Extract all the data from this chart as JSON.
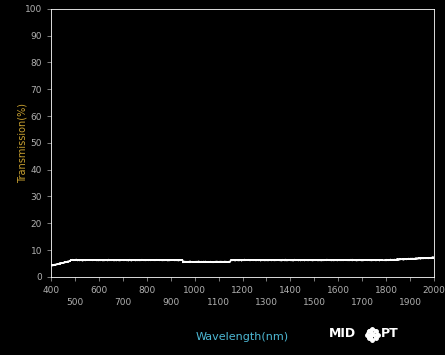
{
  "background_color": "#000000",
  "plot_bg_color": "#000000",
  "line_color": "#ffffff",
  "tick_color": "#b0b0b0",
  "label_color": "#4db8d4",
  "ylabel_color": "#c8a030",
  "axis_color": "#ffffff",
  "xlabel": "Wavelength(nm)",
  "ylabel": "Transmission(%)",
  "xlim": [
    400,
    2000
  ],
  "ylim": [
    0,
    100
  ],
  "yticks": [
    0,
    10,
    20,
    30,
    40,
    50,
    60,
    70,
    80,
    90,
    100
  ],
  "xticks_major": [
    400,
    600,
    800,
    1000,
    1200,
    1400,
    1600,
    1800,
    2000
  ],
  "xticks_minor": [
    500,
    700,
    900,
    1100,
    1300,
    1500,
    1700,
    1900
  ],
  "line_width": 1.0
}
